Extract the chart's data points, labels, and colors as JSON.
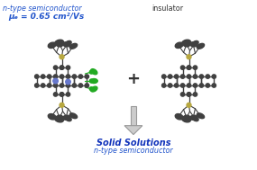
{
  "bg_color": "#ffffff",
  "title_left_line1": "n-type semiconductor",
  "title_left_line2": "μₑ = 0.65 cm²/Vs",
  "title_right": "insulator",
  "bottom_line1": "Solid Solutions",
  "bottom_line2": "n-type semiconductor",
  "plus_symbol": "+",
  "arrow_color": "#cccccc",
  "arrow_edge_color": "#999999",
  "text_color_blue": "#2255cc",
  "text_color_dark_blue": "#1133bb",
  "text_color_black": "#333333",
  "atom_dark": "#404040",
  "atom_mid": "#666666",
  "atom_light": "#888888",
  "green_color": "#22aa22",
  "blue_color": "#6677cc",
  "gold_color": "#b8a840",
  "fig_width": 2.85,
  "fig_height": 1.89
}
